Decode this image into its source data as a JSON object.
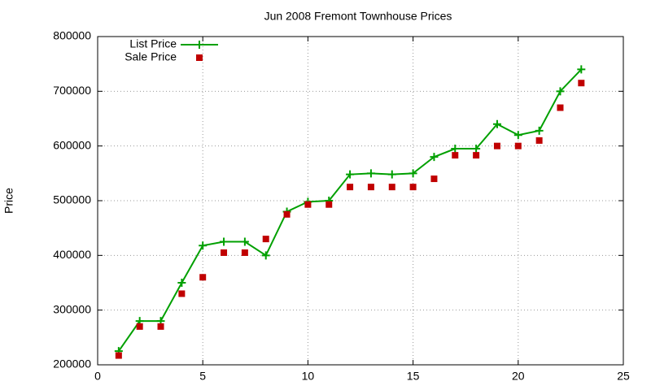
{
  "chart_data": {
    "type": "line",
    "title": "Jun 2008 Fremont Townhouse Prices",
    "y_label": "Price",
    "x": [
      1,
      2,
      3,
      4,
      5,
      6,
      7,
      8,
      9,
      10,
      11,
      12,
      13,
      14,
      15,
      16,
      17,
      18,
      19,
      20,
      21,
      22,
      23
    ],
    "series": [
      {
        "name": "List Price",
        "color": "#00a000",
        "line": true,
        "marker": "plus",
        "values": [
          225000,
          280000,
          280000,
          350000,
          418000,
          425000,
          425000,
          400000,
          480000,
          498000,
          500000,
          548000,
          550000,
          548000,
          550000,
          580000,
          595000,
          595000,
          640000,
          620000,
          628000,
          700000,
          740000
        ]
      },
      {
        "name": "Sale Price",
        "color": "#c00000",
        "line": false,
        "marker": "square",
        "values": [
          217000,
          270000,
          270000,
          330000,
          360000,
          405000,
          405000,
          430000,
          475000,
          493000,
          493000,
          525000,
          525000,
          525000,
          525000,
          540000,
          583000,
          583000,
          600000,
          600000,
          610000,
          670000,
          715000
        ]
      }
    ],
    "xlim": [
      0,
      25
    ],
    "xticks": [
      0,
      5,
      10,
      15,
      20,
      25
    ],
    "ylim": [
      200000,
      800000
    ],
    "yticks": [
      200000,
      300000,
      400000,
      500000,
      600000,
      700000,
      800000
    ],
    "grid": true,
    "legend": "top-left"
  }
}
